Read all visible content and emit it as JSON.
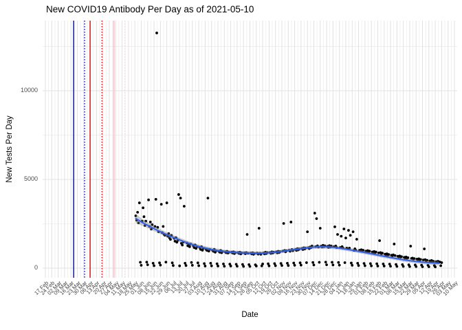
{
  "title": "New COVID19 Antibody Per Day as of 2021-05-10",
  "chart_data": {
    "type": "scatter",
    "title": "New COVID19 Antibody Per Day as of 2021-05-10",
    "xlabel": "Date",
    "ylabel": "New Tests Per Day",
    "grid": true,
    "legend": "none",
    "y_ticks": [
      0,
      5000,
      10000
    ],
    "y_grid_minor": [
      2500,
      7500,
      12500
    ],
    "ylim": [
      -540,
      13950
    ],
    "xlim_days": [
      -3,
      451
    ],
    "x_tick_step_days": 7,
    "x_epoch_label": "days since 17 Feb 2020, weekly ticks",
    "x_tick_labels": [
      "17 Feb",
      "24 Feb",
      "02 Mar",
      "09 Mar",
      "16 Mar",
      "23 Mar",
      "30 Mar",
      "06 Apr",
      "13 Apr",
      "20 Apr",
      "27 Apr",
      "04 May",
      "11 May",
      "18 May",
      "25 May",
      "01 Jun",
      "08 Jun",
      "15 Jun",
      "22 Jun",
      "29 Jun",
      "06 Jul",
      "13 Jul",
      "20 Jul",
      "27 Jul",
      "03 Aug",
      "10 Aug",
      "17 Aug",
      "24 Aug",
      "31 Aug",
      "07 Sep",
      "14 Sep",
      "21 Sep",
      "28 Sep",
      "05 Oct",
      "12 Oct",
      "19 Oct",
      "26 Oct",
      "02 Nov",
      "09 Nov",
      "16 Nov",
      "23 Nov",
      "30 Nov",
      "07 Dec",
      "14 Dec",
      "21 Dec",
      "28 Dec",
      "04 Jan",
      "11 Jan",
      "18 Jan",
      "25 Jan",
      "01 Feb",
      "08 Feb",
      "15 Feb",
      "22 Feb",
      "01 Mar",
      "08 Mar",
      "15 Mar",
      "22 Mar",
      "29 Mar",
      "05 Apr",
      "12 Apr",
      "19 Apr",
      "26 Apr",
      "03 May",
      "10 May"
    ],
    "colors": {
      "point": "#000000",
      "smooth_line": "#3360EE",
      "ribbon": "rgba(125,125,125,0.38)",
      "grid_major": "#E0E0E0",
      "grid_minor": "#ECECEC",
      "event_blue": "#1111CC",
      "event_red": "#DD1111",
      "event_pink": "#FFBFCB",
      "event_pink_light": "#FFD2DB"
    },
    "event_vlines": [
      {
        "name": "vline-blue-solid",
        "day": 31,
        "color": "#1111CC",
        "style": "solid",
        "width": 1.5
      },
      {
        "name": "vline-blue-dotted",
        "day": 43,
        "color": "#1111CC",
        "style": "dotted",
        "width": 1.4
      },
      {
        "name": "vline-red-solid",
        "day": 49,
        "color": "#DD1111",
        "style": "solid",
        "width": 1.5
      },
      {
        "name": "vline-red-dotted",
        "day": 62,
        "color": "#DD1111",
        "style": "dotted",
        "width": 1.4
      },
      {
        "name": "vline-pink-solid",
        "day": 75,
        "color": "#FFBFCB",
        "style": "solid",
        "width": 2
      },
      {
        "name": "vline-pink-dotted",
        "day": 87,
        "color": "#FFD2DB",
        "style": "dotted",
        "width": 1.4
      }
    ],
    "smooth": [
      [
        99,
        2800,
        260
      ],
      [
        106,
        2580,
        190
      ],
      [
        113,
        2390,
        160
      ],
      [
        120,
        2200,
        145
      ],
      [
        127,
        2030,
        135
      ],
      [
        134,
        1870,
        128
      ],
      [
        141,
        1720,
        122
      ],
      [
        148,
        1575,
        118
      ],
      [
        155,
        1440,
        114
      ],
      [
        162,
        1320,
        110
      ],
      [
        169,
        1210,
        107
      ],
      [
        176,
        1125,
        104
      ],
      [
        183,
        1050,
        102
      ],
      [
        190,
        988,
        100
      ],
      [
        197,
        935,
        99
      ],
      [
        204,
        903,
        98
      ],
      [
        211,
        878,
        97
      ],
      [
        218,
        862,
        97
      ],
      [
        225,
        853,
        97
      ],
      [
        232,
        850,
        97
      ],
      [
        239,
        856,
        97
      ],
      [
        246,
        875,
        97
      ],
      [
        253,
        905,
        97
      ],
      [
        260,
        952,
        98
      ],
      [
        267,
        1010,
        99
      ],
      [
        274,
        1062,
        100
      ],
      [
        281,
        1110,
        101
      ],
      [
        288,
        1155,
        102
      ],
      [
        295,
        1188,
        103
      ],
      [
        302,
        1203,
        103
      ],
      [
        309,
        1193,
        103
      ],
      [
        316,
        1168,
        102
      ],
      [
        323,
        1122,
        101
      ],
      [
        330,
        1065,
        100
      ],
      [
        337,
        1002,
        99
      ],
      [
        344,
        938,
        98
      ],
      [
        351,
        870,
        98
      ],
      [
        358,
        800,
        98
      ],
      [
        365,
        730,
        98
      ],
      [
        372,
        660,
        99
      ],
      [
        379,
        592,
        100
      ],
      [
        386,
        526,
        101
      ],
      [
        393,
        466,
        103
      ],
      [
        400,
        415,
        105
      ],
      [
        407,
        370,
        108
      ],
      [
        414,
        331,
        112
      ],
      [
        421,
        301,
        117
      ],
      [
        428,
        281,
        124
      ],
      [
        431,
        272,
        128
      ]
    ],
    "points": [
      [
        99,
        2950
      ],
      [
        100,
        2700
      ],
      [
        101,
        3150
      ],
      [
        102,
        2550
      ],
      [
        103,
        3680
      ],
      [
        104,
        330
      ],
      [
        105,
        160
      ],
      [
        106,
        2650
      ],
      [
        107,
        3400
      ],
      [
        108,
        2900
      ],
      [
        109,
        2400
      ],
      [
        110,
        2650
      ],
      [
        111,
        340
      ],
      [
        112,
        190
      ],
      [
        113,
        3850
      ],
      [
        114,
        2350
      ],
      [
        115,
        2600
      ],
      [
        116,
        2200
      ],
      [
        117,
        2450
      ],
      [
        118,
        280
      ],
      [
        119,
        140
      ],
      [
        120,
        2350
      ],
      [
        121,
        3880
      ],
      [
        122,
        13255
      ],
      [
        123,
        2300
      ],
      [
        124,
        2050
      ],
      [
        125,
        300
      ],
      [
        126,
        170
      ],
      [
        127,
        3600
      ],
      [
        128,
        2000
      ],
      [
        129,
        2350
      ],
      [
        130,
        1900
      ],
      [
        131,
        1850
      ],
      [
        132,
        340
      ],
      [
        133,
        3680
      ],
      [
        134,
        1800
      ],
      [
        135,
        1950
      ],
      [
        136,
        1700
      ],
      [
        137,
        1620
      ],
      [
        138,
        1850
      ],
      [
        139,
        300
      ],
      [
        140,
        150
      ],
      [
        141,
        1680
      ],
      [
        142,
        1520
      ],
      [
        143,
        1720
      ],
      [
        144,
        1460
      ],
      [
        145,
        1560
      ],
      [
        146,
        4150
      ],
      [
        147,
        130
      ],
      [
        148,
        3950
      ],
      [
        149,
        1400
      ],
      [
        150,
        1300
      ],
      [
        151,
        1460
      ],
      [
        152,
        3490
      ],
      [
        153,
        280
      ],
      [
        154,
        150
      ],
      [
        155,
        1420
      ],
      [
        156,
        1260
      ],
      [
        157,
        1320
      ],
      [
        158,
        1210
      ],
      [
        159,
        1360
      ],
      [
        160,
        320
      ],
      [
        161,
        160
      ],
      [
        162,
        1260
      ],
      [
        163,
        1160
      ],
      [
        164,
        1310
      ],
      [
        165,
        1110
      ],
      [
        166,
        1210
      ],
      [
        167,
        300
      ],
      [
        168,
        140
      ],
      [
        169,
        1160
      ],
      [
        170,
        1060
      ],
      [
        171,
        1210
      ],
      [
        172,
        1010
      ],
      [
        173,
        1110
      ],
      [
        174,
        260
      ],
      [
        175,
        120
      ],
      [
        176,
        1060
      ],
      [
        177,
        1000
      ],
      [
        178,
        3950
      ],
      [
        179,
        960
      ],
      [
        180,
        1060
      ],
      [
        181,
        280
      ],
      [
        182,
        130
      ],
      [
        183,
        1010
      ],
      [
        184,
        950
      ],
      [
        185,
        1060
      ],
      [
        186,
        900
      ],
      [
        187,
        980
      ],
      [
        188,
        250
      ],
      [
        189,
        120
      ],
      [
        190,
        950
      ],
      [
        191,
        900
      ],
      [
        192,
        1000
      ],
      [
        193,
        870
      ],
      [
        194,
        940
      ],
      [
        195,
        240
      ],
      [
        196,
        110
      ],
      [
        197,
        920
      ],
      [
        198,
        870
      ],
      [
        199,
        950
      ],
      [
        200,
        850
      ],
      [
        201,
        900
      ],
      [
        202,
        230
      ],
      [
        203,
        120
      ],
      [
        204,
        900
      ],
      [
        205,
        850
      ],
      [
        206,
        920
      ],
      [
        207,
        820
      ],
      [
        208,
        880
      ],
      [
        209,
        220
      ],
      [
        210,
        110
      ],
      [
        211,
        880
      ],
      [
        212,
        830
      ],
      [
        213,
        900
      ],
      [
        214,
        800
      ],
      [
        215,
        860
      ],
      [
        216,
        210
      ],
      [
        217,
        100
      ],
      [
        218,
        860
      ],
      [
        219,
        810
      ],
      [
        220,
        880
      ],
      [
        221,
        1900
      ],
      [
        222,
        840
      ],
      [
        223,
        200
      ],
      [
        224,
        100
      ],
      [
        225,
        850
      ],
      [
        226,
        800
      ],
      [
        227,
        870
      ],
      [
        228,
        780
      ],
      [
        229,
        830
      ],
      [
        230,
        190
      ],
      [
        231,
        120
      ],
      [
        232,
        850
      ],
      [
        233,
        790
      ],
      [
        234,
        2250
      ],
      [
        235,
        840
      ],
      [
        236,
        780
      ],
      [
        237,
        130
      ],
      [
        238,
        240
      ],
      [
        239,
        855
      ],
      [
        240,
        800
      ],
      [
        241,
        900
      ],
      [
        242,
        820
      ],
      [
        243,
        880
      ],
      [
        244,
        250
      ],
      [
        245,
        130
      ],
      [
        246,
        880
      ],
      [
        247,
        830
      ],
      [
        248,
        920
      ],
      [
        249,
        850
      ],
      [
        250,
        900
      ],
      [
        251,
        260
      ],
      [
        252,
        140
      ],
      [
        253,
        920
      ],
      [
        254,
        860
      ],
      [
        255,
        950
      ],
      [
        256,
        880
      ],
      [
        257,
        930
      ],
      [
        258,
        270
      ],
      [
        259,
        150
      ],
      [
        260,
        960
      ],
      [
        261,
        2520
      ],
      [
        262,
        1000
      ],
      [
        263,
        920
      ],
      [
        264,
        980
      ],
      [
        265,
        280
      ],
      [
        266,
        150
      ],
      [
        267,
        1010
      ],
      [
        268,
        950
      ],
      [
        269,
        2600
      ],
      [
        270,
        1050
      ],
      [
        271,
        980
      ],
      [
        272,
        290
      ],
      [
        273,
        160
      ],
      [
        274,
        1050
      ],
      [
        275,
        1000
      ],
      [
        276,
        1100
      ],
      [
        277,
        1030
      ],
      [
        278,
        1080
      ],
      [
        279,
        300
      ],
      [
        280,
        170
      ],
      [
        281,
        1110
      ],
      [
        282,
        1050
      ],
      [
        283,
        1150
      ],
      [
        284,
        1080
      ],
      [
        285,
        1130
      ],
      [
        286,
        310
      ],
      [
        287,
        2050
      ],
      [
        288,
        1150
      ],
      [
        289,
        1100
      ],
      [
        290,
        1200
      ],
      [
        291,
        1160
      ],
      [
        292,
        1250
      ],
      [
        293,
        320
      ],
      [
        294,
        180
      ],
      [
        295,
        3100
      ],
      [
        296,
        1210
      ],
      [
        297,
        2790
      ],
      [
        298,
        1260
      ],
      [
        299,
        1190
      ],
      [
        300,
        330
      ],
      [
        301,
        2250
      ],
      [
        302,
        1240
      ],
      [
        303,
        1190
      ],
      [
        304,
        1290
      ],
      [
        305,
        1210
      ],
      [
        306,
        1260
      ],
      [
        307,
        340
      ],
      [
        308,
        190
      ],
      [
        309,
        1230
      ],
      [
        310,
        1170
      ],
      [
        311,
        1270
      ],
      [
        312,
        1190
      ],
      [
        313,
        1250
      ],
      [
        314,
        330
      ],
      [
        315,
        180
      ],
      [
        316,
        1210
      ],
      [
        317,
        2330
      ],
      [
        318,
        1250
      ],
      [
        319,
        1160
      ],
      [
        320,
        1900
      ],
      [
        321,
        320
      ],
      [
        322,
        170
      ],
      [
        323,
        1170
      ],
      [
        324,
        1800
      ],
      [
        325,
        1210
      ],
      [
        326,
        1130
      ],
      [
        327,
        2210
      ],
      [
        328,
        310
      ],
      [
        329,
        1700
      ],
      [
        330,
        1130
      ],
      [
        331,
        1090
      ],
      [
        332,
        2130
      ],
      [
        333,
        1130
      ],
      [
        334,
        1850
      ],
      [
        335,
        290
      ],
      [
        336,
        160
      ],
      [
        337,
        2050
      ],
      [
        338,
        1000
      ],
      [
        339,
        1090
      ],
      [
        340,
        1010
      ],
      [
        341,
        1630
      ],
      [
        342,
        280
      ],
      [
        343,
        150
      ],
      [
        344,
        1010
      ],
      [
        345,
        960
      ],
      [
        346,
        1040
      ],
      [
        347,
        970
      ],
      [
        348,
        1010
      ],
      [
        349,
        270
      ],
      [
        350,
        140
      ],
      [
        351,
        960
      ],
      [
        352,
        910
      ],
      [
        353,
        990
      ],
      [
        354,
        920
      ],
      [
        355,
        960
      ],
      [
        356,
        260
      ],
      [
        357,
        130
      ],
      [
        358,
        910
      ],
      [
        359,
        860
      ],
      [
        360,
        940
      ],
      [
        361,
        870
      ],
      [
        362,
        910
      ],
      [
        363,
        250
      ],
      [
        364,
        120
      ],
      [
        365,
        860
      ],
      [
        366,
        1550
      ],
      [
        367,
        880
      ],
      [
        368,
        810
      ],
      [
        369,
        850
      ],
      [
        370,
        240
      ],
      [
        371,
        120
      ],
      [
        372,
        790
      ],
      [
        373,
        750
      ],
      [
        374,
        810
      ],
      [
        375,
        740
      ],
      [
        376,
        770
      ],
      [
        377,
        230
      ],
      [
        378,
        110
      ],
      [
        379,
        730
      ],
      [
        380,
        690
      ],
      [
        381,
        750
      ],
      [
        382,
        1360
      ],
      [
        383,
        710
      ],
      [
        384,
        210
      ],
      [
        385,
        100
      ],
      [
        386,
        670
      ],
      [
        387,
        630
      ],
      [
        388,
        690
      ],
      [
        389,
        620
      ],
      [
        390,
        650
      ],
      [
        391,
        200
      ],
      [
        392,
        100
      ],
      [
        393,
        610
      ],
      [
        394,
        570
      ],
      [
        395,
        630
      ],
      [
        396,
        560
      ],
      [
        397,
        590
      ],
      [
        398,
        190
      ],
      [
        399,
        90
      ],
      [
        400,
        1240
      ],
      [
        401,
        550
      ],
      [
        402,
        570
      ],
      [
        403,
        510
      ],
      [
        404,
        540
      ],
      [
        405,
        180
      ],
      [
        406,
        90
      ],
      [
        407,
        510
      ],
      [
        408,
        470
      ],
      [
        409,
        530
      ],
      [
        410,
        460
      ],
      [
        411,
        490
      ],
      [
        412,
        170
      ],
      [
        413,
        80
      ],
      [
        414,
        460
      ],
      [
        415,
        1085
      ],
      [
        416,
        480
      ],
      [
        417,
        420
      ],
      [
        418,
        440
      ],
      [
        419,
        160
      ],
      [
        420,
        80
      ],
      [
        421,
        410
      ],
      [
        422,
        380
      ],
      [
        423,
        430
      ],
      [
        424,
        360
      ],
      [
        425,
        390
      ],
      [
        426,
        150
      ],
      [
        427,
        70
      ],
      [
        428,
        370
      ],
      [
        429,
        340
      ],
      [
        430,
        390
      ],
      [
        431,
        320
      ],
      [
        432,
        350
      ],
      [
        433,
        140
      ],
      [
        434,
        310
      ]
    ]
  }
}
